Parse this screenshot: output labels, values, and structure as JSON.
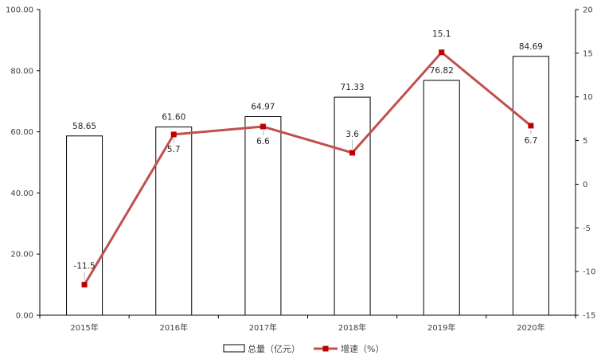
{
  "chart_data": {
    "type": "bar",
    "categories": [
      "2015年",
      "2016年",
      "2017年",
      "2018年",
      "2019年",
      "2020年"
    ],
    "series": [
      {
        "name": "总量（亿元）",
        "type": "bar",
        "axis": "left",
        "values": [
          58.65,
          61.6,
          64.97,
          71.33,
          76.82,
          84.69
        ],
        "labels": [
          "58.65",
          "61.60",
          "64.97",
          "71.33",
          "76.82",
          "84.69"
        ],
        "color": "#ffffff",
        "stroke": "#000000"
      },
      {
        "name": "增速（%）",
        "type": "line",
        "axis": "right",
        "values": [
          -11.5,
          5.7,
          6.6,
          3.6,
          15.1,
          6.7
        ],
        "labels": [
          "-11.5",
          "5.7",
          "6.6",
          "3.6",
          "15.1",
          "6.7"
        ],
        "color": "#c0504d",
        "marker_color": "#c00000"
      }
    ],
    "y_left": {
      "ylim": [
        0,
        100
      ],
      "ticks": [
        "0.00",
        "20.00",
        "40.00",
        "60.00",
        "80.00",
        "100.00"
      ]
    },
    "y_right": {
      "ylim": [
        -15,
        20
      ],
      "ticks": [
        "-15",
        "-10",
        "-5",
        "0",
        "5",
        "10",
        "15",
        "20"
      ]
    },
    "grid": false,
    "legend": "bottom-center"
  }
}
